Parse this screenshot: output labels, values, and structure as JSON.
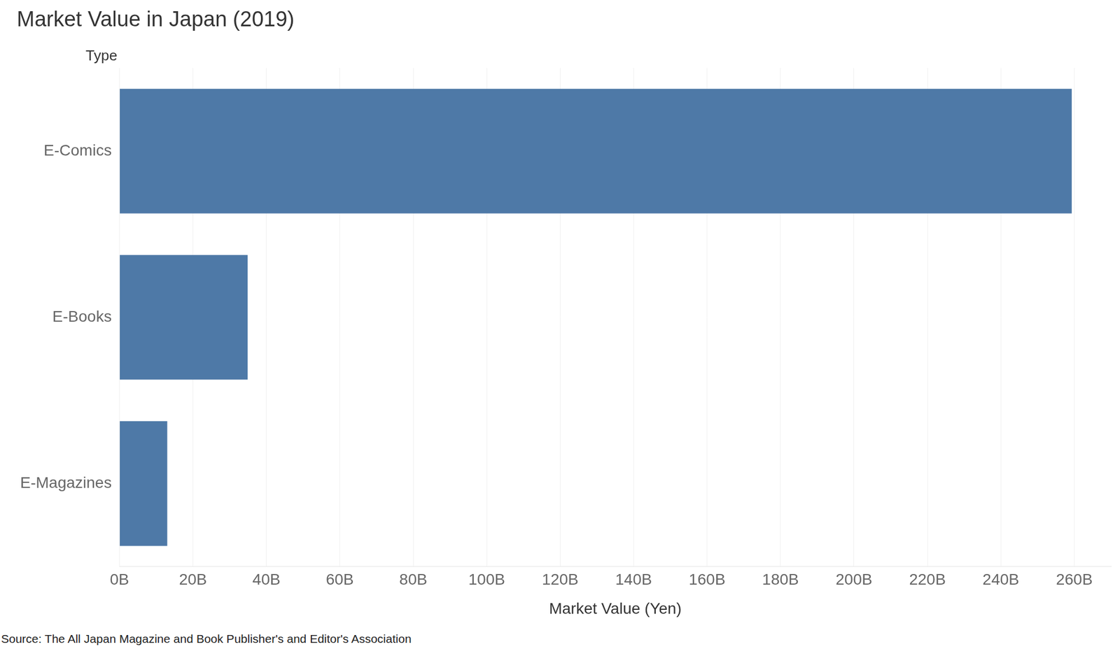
{
  "chart_data": {
    "type": "bar",
    "orientation": "horizontal",
    "title": "Market Value in Japan (2019)",
    "y_label": "Type",
    "x_label": "Market Value (Yen)",
    "source": "Source: The All Japan Magazine and Book Publisher's and Editor's Association",
    "categories": [
      "E-Comics",
      "E-Books",
      "E-Magazines"
    ],
    "values": [
      259300000000,
      34900000000,
      13000000000
    ],
    "color": "#4e79a7",
    "xlim": [
      0,
      270000000000
    ],
    "xticks": [
      {
        "value": 0,
        "label": "0B"
      },
      {
        "value": 20000000000,
        "label": "20B"
      },
      {
        "value": 40000000000,
        "label": "40B"
      },
      {
        "value": 60000000000,
        "label": "60B"
      },
      {
        "value": 80000000000,
        "label": "80B"
      },
      {
        "value": 100000000000,
        "label": "100B"
      },
      {
        "value": 120000000000,
        "label": "120B"
      },
      {
        "value": 140000000000,
        "label": "140B"
      },
      {
        "value": 160000000000,
        "label": "160B"
      },
      {
        "value": 180000000000,
        "label": "180B"
      },
      {
        "value": 200000000000,
        "label": "200B"
      },
      {
        "value": 220000000000,
        "label": "220B"
      },
      {
        "value": 240000000000,
        "label": "240B"
      },
      {
        "value": 260000000000,
        "label": "260B"
      }
    ],
    "grid": true
  }
}
